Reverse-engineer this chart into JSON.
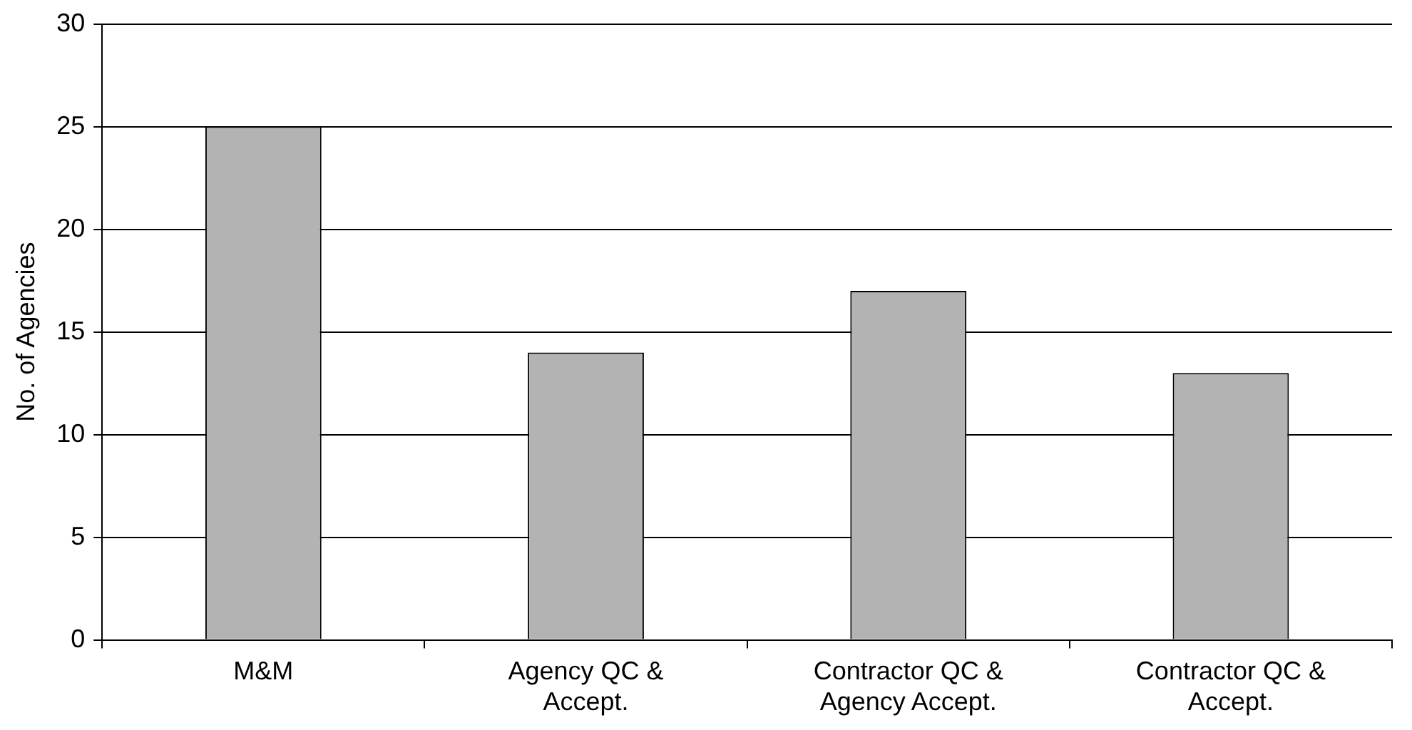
{
  "chart_data": {
    "type": "bar",
    "ylabel": "No. of Agencies",
    "categories": [
      "M&M",
      "Agency QC & Accept.",
      "Contractor QC & Agency Accept.",
      "Contractor QC & Accept."
    ],
    "values": [
      25,
      14,
      17,
      13
    ],
    "color": "#b3b3b3",
    "ylim": [
      0,
      30
    ],
    "yticks": [
      0,
      5,
      10,
      15,
      20,
      25,
      30
    ],
    "grid": "y",
    "legend": false
  }
}
